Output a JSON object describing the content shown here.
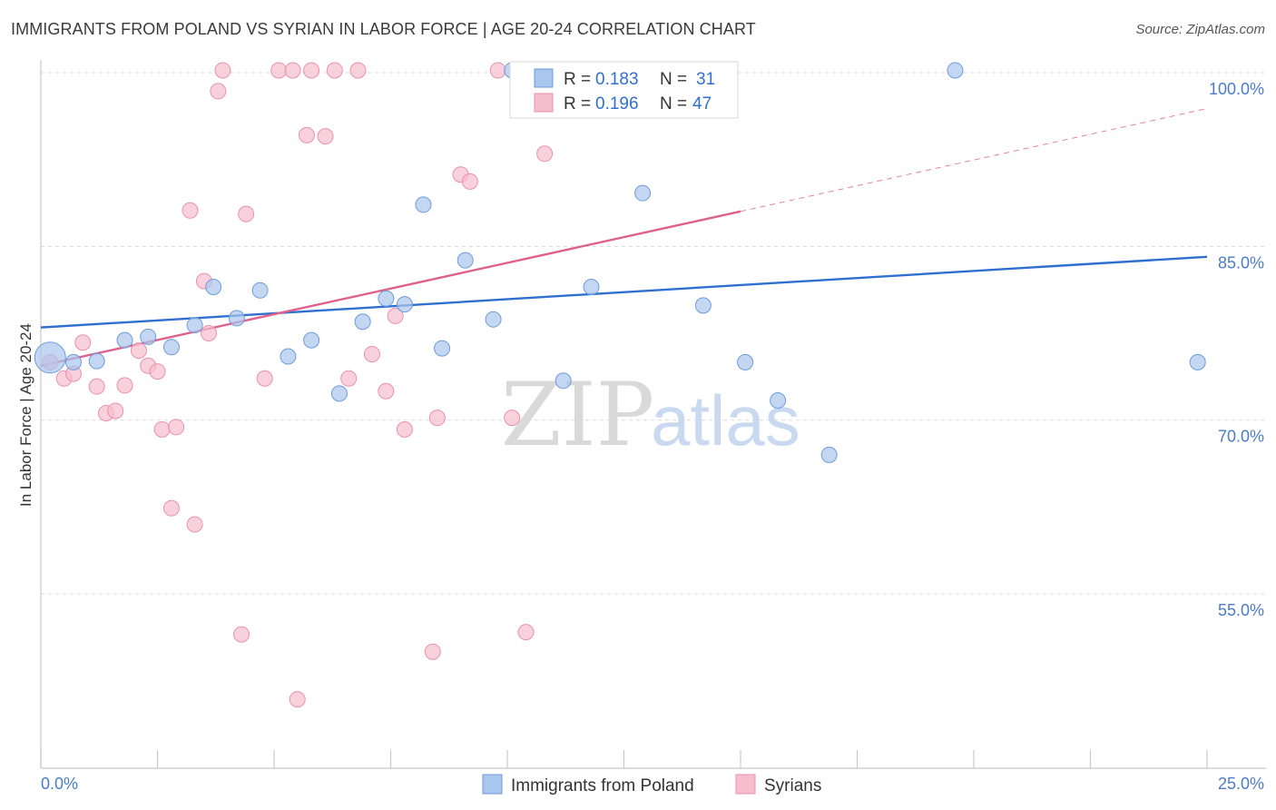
{
  "header": {
    "title": "IMMIGRANTS FROM POLAND VS SYRIAN IN LABOR FORCE | AGE 20-24 CORRELATION CHART",
    "source": "Source: ZipAtlas.com"
  },
  "watermark": {
    "zip": "ZIP",
    "atlas": "atlas"
  },
  "chart_data": {
    "type": "scatter",
    "title": "IMMIGRANTS FROM POLAND VS SYRIAN IN LABOR FORCE | AGE 20-24 CORRELATION CHART",
    "xlabel": "",
    "ylabel": "In Labor Force | Age 20-24",
    "xlim": [
      0,
      25
    ],
    "ylim": [
      40,
      102
    ],
    "x_tick_labels": [
      "0.0%",
      "25.0%"
    ],
    "y_ticks": [
      55,
      70,
      85,
      100
    ],
    "y_tick_labels": [
      "55.0%",
      "70.0%",
      "85.0%",
      "100.0%"
    ],
    "grid": true,
    "legend": {
      "placement": "top-center",
      "items": [
        {
          "r_label": "R =",
          "r_value": "0.183",
          "n_label": "N =",
          "n_value": "31"
        },
        {
          "r_label": "R =",
          "r_value": "0.196",
          "n_label": "N =",
          "n_value": "47"
        }
      ]
    },
    "series": [
      {
        "name": "Immigrants from Poland",
        "color": "#a9c6ee",
        "stroke": "#6f9bd8",
        "line_color": "#2f6fd0",
        "trend": {
          "x0": 0,
          "y0": 78.0,
          "x1": 25,
          "y1": 84.1,
          "solid_to_x": 25
        },
        "points": [
          [
            0.2,
            75.4
          ],
          [
            0.7,
            75.0
          ],
          [
            1.2,
            75.1
          ],
          [
            1.8,
            76.9
          ],
          [
            2.3,
            77.2
          ],
          [
            2.8,
            76.3
          ],
          [
            3.3,
            78.2
          ],
          [
            3.7,
            81.5
          ],
          [
            4.2,
            78.8
          ],
          [
            4.7,
            81.2
          ],
          [
            5.3,
            75.5
          ],
          [
            5.8,
            76.9
          ],
          [
            6.4,
            72.3
          ],
          [
            6.9,
            78.5
          ],
          [
            7.4,
            80.5
          ],
          [
            7.8,
            80.0
          ],
          [
            8.2,
            88.6
          ],
          [
            8.6,
            76.2
          ],
          [
            9.1,
            83.8
          ],
          [
            9.7,
            78.7
          ],
          [
            10.1,
            100.2
          ],
          [
            11.2,
            73.4
          ],
          [
            11.8,
            81.5
          ],
          [
            12.9,
            89.6
          ],
          [
            14.2,
            79.9
          ],
          [
            15.1,
            75.0
          ],
          [
            15.8,
            71.7
          ],
          [
            16.9,
            67.0
          ],
          [
            19.6,
            100.2
          ],
          [
            24.8,
            75.0
          ]
        ]
      },
      {
        "name": "Syrians",
        "color": "#f6bdcf",
        "stroke": "#e991ad",
        "line_color": "#e0608c",
        "trend": {
          "x0": 0,
          "y0": 74.7,
          "x1": 25,
          "y1": 96.9,
          "solid_to_x": 15.0
        },
        "points": [
          [
            0.2,
            75.0
          ],
          [
            0.5,
            73.6
          ],
          [
            0.7,
            74.0
          ],
          [
            0.9,
            76.7
          ],
          [
            1.2,
            72.9
          ],
          [
            1.4,
            70.6
          ],
          [
            1.6,
            70.8
          ],
          [
            1.8,
            73.0
          ],
          [
            2.1,
            76.0
          ],
          [
            2.3,
            74.7
          ],
          [
            2.5,
            74.2
          ],
          [
            2.6,
            69.2
          ],
          [
            2.8,
            62.4
          ],
          [
            2.9,
            69.4
          ],
          [
            3.2,
            88.1
          ],
          [
            3.3,
            61.0
          ],
          [
            3.5,
            82.0
          ],
          [
            3.6,
            77.5
          ],
          [
            3.8,
            98.4
          ],
          [
            3.9,
            100.2
          ],
          [
            4.3,
            51.5
          ],
          [
            4.4,
            87.8
          ],
          [
            4.8,
            73.6
          ],
          [
            5.1,
            100.2
          ],
          [
            5.4,
            100.2
          ],
          [
            5.5,
            45.9
          ],
          [
            5.7,
            94.6
          ],
          [
            5.8,
            100.2
          ],
          [
            6.1,
            94.5
          ],
          [
            6.3,
            100.2
          ],
          [
            6.6,
            73.6
          ],
          [
            6.8,
            100.2
          ],
          [
            7.1,
            75.7
          ],
          [
            7.4,
            72.5
          ],
          [
            7.6,
            79.0
          ],
          [
            7.8,
            69.2
          ],
          [
            8.4,
            50.0
          ],
          [
            8.5,
            70.2
          ],
          [
            9.0,
            91.2
          ],
          [
            9.2,
            90.6
          ],
          [
            9.8,
            100.2
          ],
          [
            10.1,
            70.2
          ],
          [
            10.4,
            51.7
          ],
          [
            10.8,
            93.0
          ]
        ]
      }
    ]
  },
  "bottom_legend": [
    "Immigrants from Poland",
    "Syrians"
  ],
  "colors": {
    "blue_fill": "#a9c6ee",
    "pink_fill": "#f6bdcf",
    "blue_line": "#2f6fd0",
    "pink_line": "#e0608c",
    "tick_text": "#4a7cc7"
  }
}
